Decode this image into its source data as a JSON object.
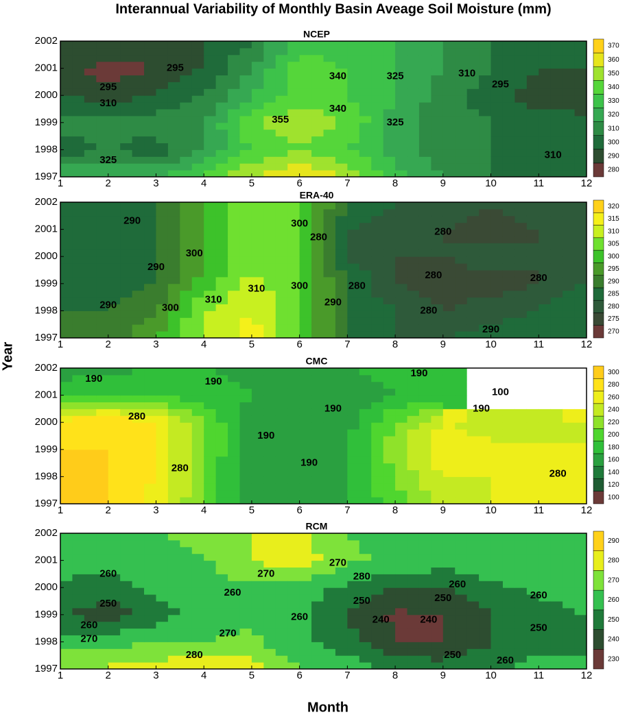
{
  "title": "Interannual Variability of Monthly Basin Aveage Soil Moisture (mm)",
  "x_label": "Month",
  "y_label": "Year",
  "chart_data": [
    {
      "type": "contour",
      "title": "NCEP",
      "x": [
        1,
        2,
        3,
        4,
        5,
        6,
        7,
        8,
        9,
        10,
        11,
        12
      ],
      "y": [
        1997,
        1998,
        1999,
        2000,
        2001,
        2002
      ],
      "z": [
        [
          330,
          330,
          330,
          340,
          360,
          370,
          360,
          335,
          320,
          310,
          305,
          305
        ],
        [
          305,
          310,
          305,
          320,
          340,
          350,
          340,
          325,
          315,
          310,
          305,
          305
        ],
        [
          315,
          315,
          315,
          320,
          350,
          358,
          350,
          325,
          315,
          310,
          305,
          305
        ],
        [
          300,
          295,
          300,
          310,
          330,
          345,
          340,
          330,
          315,
          305,
          295,
          290
        ],
        [
          295,
          285,
          290,
          300,
          320,
          345,
          340,
          330,
          320,
          310,
          300,
          300
        ],
        [
          300,
          300,
          300,
          300,
          310,
          335,
          335,
          330,
          320,
          310,
          305,
          305
        ]
      ],
      "xlim": [
        1,
        12
      ],
      "ylim": [
        1997,
        2002
      ],
      "xticks": [
        1,
        2,
        3,
        4,
        5,
        6,
        7,
        8,
        9,
        10,
        11,
        12
      ],
      "yticks": [
        1997,
        1998,
        1999,
        2000,
        2001,
        2002
      ],
      "levels": [
        280,
        290,
        300,
        310,
        320,
        330,
        340,
        350,
        360,
        370
      ],
      "colors": [
        "#6b3a38",
        "#2d4d30",
        "#1f6b3a",
        "#2e8b45",
        "#36a852",
        "#3dc24a",
        "#55d63a",
        "#9fe22e",
        "#e6e51c",
        "#ffd11a"
      ],
      "contour_labels": [
        {
          "x": 2,
          "y": 2000.3,
          "value": 295
        },
        {
          "x": 2,
          "y": 1999.7,
          "value": 310
        },
        {
          "x": 2,
          "y": 1997.6,
          "value": 325
        },
        {
          "x": 3.4,
          "y": 2001,
          "value": 295
        },
        {
          "x": 5.6,
          "y": 1999.1,
          "value": 355
        },
        {
          "x": 6.8,
          "y": 1999.5,
          "value": 340
        },
        {
          "x": 6.8,
          "y": 2000.7,
          "value": 340
        },
        {
          "x": 8,
          "y": 1999,
          "value": 325
        },
        {
          "x": 8,
          "y": 2000.7,
          "value": 325
        },
        {
          "x": 10.2,
          "y": 2000.4,
          "value": 295
        },
        {
          "x": 9.5,
          "y": 2000.8,
          "value": 310
        },
        {
          "x": 11.3,
          "y": 1997.8,
          "value": 310
        }
      ]
    },
    {
      "type": "contour",
      "title": "ERA-40",
      "x": [
        1,
        2,
        3,
        4,
        5,
        6,
        7,
        8,
        9,
        10,
        11,
        12
      ],
      "y": [
        1997,
        1998,
        1999,
        2000,
        2001,
        2002
      ],
      "z": [
        [
          290,
          290,
          300,
          310,
          318,
          305,
          290,
          285,
          285,
          288,
          290,
          290
        ],
        [
          290,
          290,
          295,
          310,
          315,
          305,
          290,
          285,
          280,
          282,
          285,
          290
        ],
        [
          288,
          285,
          290,
          302,
          312,
          305,
          290,
          280,
          278,
          278,
          280,
          285
        ],
        [
          285,
          290,
          290,
          300,
          308,
          305,
          285,
          280,
          280,
          282,
          280,
          285
        ],
        [
          285,
          285,
          290,
          300,
          310,
          305,
          285,
          280,
          280,
          278,
          280,
          285
        ],
        [
          285,
          285,
          290,
          300,
          310,
          305,
          290,
          285,
          285,
          280,
          285,
          285
        ]
      ],
      "xlim": [
        1,
        12
      ],
      "ylim": [
        1997,
        2002
      ],
      "xticks": [
        1,
        2,
        3,
        4,
        5,
        6,
        7,
        8,
        9,
        10,
        11,
        12
      ],
      "yticks": [
        1997,
        1998,
        1999,
        2000,
        2001,
        2002
      ],
      "levels": [
        270,
        275,
        280,
        285,
        290,
        295,
        300,
        305,
        310,
        315,
        320
      ],
      "colors": [
        "#6b3a38",
        "#3a4a35",
        "#2e5a3a",
        "#1f6b3a",
        "#3a7d2e",
        "#4a9a2a",
        "#3dc22a",
        "#6fe030",
        "#c8f020",
        "#f5f01a",
        "#ffd11a"
      ],
      "contour_labels": [
        {
          "x": 2,
          "y": 1998.2,
          "value": 290
        },
        {
          "x": 2.5,
          "y": 2001.3,
          "value": 290
        },
        {
          "x": 3,
          "y": 1999.6,
          "value": 290
        },
        {
          "x": 3.8,
          "y": 2000.1,
          "value": 300
        },
        {
          "x": 3.3,
          "y": 1998.1,
          "value": 300
        },
        {
          "x": 4.2,
          "y": 1998.4,
          "value": 310
        },
        {
          "x": 5.1,
          "y": 1998.8,
          "value": 310
        },
        {
          "x": 6,
          "y": 2001.2,
          "value": 300
        },
        {
          "x": 6,
          "y": 1998.9,
          "value": 300
        },
        {
          "x": 6.4,
          "y": 2000.7,
          "value": 280
        },
        {
          "x": 6.7,
          "y": 1998.3,
          "value": 290
        },
        {
          "x": 7.2,
          "y": 1998.9,
          "value": 280
        },
        {
          "x": 9,
          "y": 2000.9,
          "value": 280
        },
        {
          "x": 8.8,
          "y": 1999.3,
          "value": 280
        },
        {
          "x": 11,
          "y": 1999.2,
          "value": 280
        },
        {
          "x": 8.7,
          "y": 1998,
          "value": 280
        },
        {
          "x": 10,
          "y": 1997.3,
          "value": 290
        }
      ]
    },
    {
      "type": "contour",
      "title": "CMC",
      "x": [
        1,
        2,
        3,
        4,
        5,
        6,
        7,
        8,
        9,
        10,
        11,
        12
      ],
      "y": [
        1997,
        1998,
        1999,
        2000,
        2001,
        2002
      ],
      "z": [
        [
          300,
          300,
          270,
          220,
          160,
          170,
          180,
          210,
          250,
          260,
          270,
          280
        ],
        [
          300,
          300,
          280,
          220,
          160,
          170,
          180,
          220,
          260,
          260,
          270,
          270
        ],
        [
          300,
          300,
          280,
          220,
          170,
          170,
          180,
          230,
          280,
          270,
          270,
          260
        ],
        [
          290,
          300,
          280,
          220,
          170,
          160,
          170,
          220,
          260,
          240,
          240,
          260
        ],
        [
          190,
          200,
          200,
          190,
          180,
          170,
          170,
          180,
          190,
          null,
          null,
          null
        ],
        [
          170,
          175,
          180,
          180,
          170,
          180,
          180,
          185,
          190,
          null,
          null,
          null
        ]
      ],
      "xlim": [
        1,
        12
      ],
      "ylim": [
        1997,
        2002
      ],
      "xticks": [
        1,
        2,
        3,
        4,
        5,
        6,
        7,
        8,
        9,
        10,
        11,
        12
      ],
      "yticks": [
        1997,
        1998,
        1999,
        2000,
        2001,
        2002
      ],
      "levels": [
        100,
        120,
        140,
        160,
        180,
        200,
        220,
        240,
        260,
        280,
        300
      ],
      "colors": [
        "#6b3a38",
        "#1f5c33",
        "#1f7a3a",
        "#2aa040",
        "#30bf3a",
        "#4fd62f",
        "#8fe22a",
        "#c4ea22",
        "#eeee1a",
        "#ffe21a",
        "#ffcc1a"
      ],
      "contour_labels": [
        {
          "x": 1.7,
          "y": 2001.6,
          "value": 190
        },
        {
          "x": 4.2,
          "y": 2001.5,
          "value": 190
        },
        {
          "x": 2.6,
          "y": 2000.2,
          "value": 280
        },
        {
          "x": 3.5,
          "y": 1998.3,
          "value": 280
        },
        {
          "x": 5.3,
          "y": 1999.5,
          "value": 190
        },
        {
          "x": 6.7,
          "y": 2000.5,
          "value": 190
        },
        {
          "x": 6.2,
          "y": 1998.5,
          "value": 190
        },
        {
          "x": 8.5,
          "y": 2001.8,
          "value": 190
        },
        {
          "x": 9.8,
          "y": 2000.5,
          "value": 190
        },
        {
          "x": 10.2,
          "y": 2001.1,
          "value": 100
        },
        {
          "x": 11.4,
          "y": 1998.1,
          "value": 280
        }
      ]
    },
    {
      "type": "contour",
      "title": "RCM",
      "x": [
        1,
        2,
        3,
        4,
        5,
        6,
        7,
        8,
        9,
        10,
        11,
        12
      ],
      "y": [
        1997,
        1998,
        1999,
        2000,
        2001,
        2002
      ],
      "z": [
        [
          280,
          282,
          285,
          290,
          285,
          270,
          265,
          260,
          255,
          258,
          265,
          268
        ],
        [
          265,
          265,
          270,
          270,
          272,
          262,
          255,
          240,
          240,
          250,
          255,
          255
        ],
        [
          250,
          245,
          255,
          265,
          268,
          262,
          248,
          238,
          240,
          250,
          258,
          260
        ],
        [
          258,
          255,
          262,
          268,
          268,
          265,
          258,
          250,
          250,
          258,
          262,
          262
        ],
        [
          265,
          265,
          265,
          268,
          280,
          285,
          272,
          268,
          265,
          265,
          265,
          265
        ],
        [
          270,
          270,
          270,
          275,
          280,
          285,
          270,
          265,
          265,
          265,
          265,
          265
        ]
      ],
      "xlim": [
        1,
        12
      ],
      "ylim": [
        1997,
        2002
      ],
      "xticks": [
        1,
        2,
        3,
        4,
        5,
        6,
        7,
        8,
        9,
        10,
        11,
        12
      ],
      "yticks": [
        1997,
        1998,
        1999,
        2000,
        2001,
        2002
      ],
      "levels": [
        230,
        240,
        250,
        260,
        270,
        280,
        290
      ],
      "colors": [
        "#6b3a38",
        "#2d4d30",
        "#1f7a3a",
        "#35c050",
        "#7ee23a",
        "#e8ee1c",
        "#ffd11a"
      ],
      "contour_labels": [
        {
          "x": 2,
          "y": 2000.5,
          "value": 260
        },
        {
          "x": 2,
          "y": 1999.4,
          "value": 250
        },
        {
          "x": 1.6,
          "y": 1998.6,
          "value": 260
        },
        {
          "x": 1.6,
          "y": 1998.1,
          "value": 270
        },
        {
          "x": 3.8,
          "y": 1997.5,
          "value": 280
        },
        {
          "x": 4.5,
          "y": 1998.3,
          "value": 270
        },
        {
          "x": 4.6,
          "y": 1999.8,
          "value": 260
        },
        {
          "x": 5.3,
          "y": 2000.5,
          "value": 270
        },
        {
          "x": 6.8,
          "y": 2000.9,
          "value": 270
        },
        {
          "x": 6,
          "y": 1998.9,
          "value": 260
        },
        {
          "x": 7.3,
          "y": 2000.4,
          "value": 280
        },
        {
          "x": 7.3,
          "y": 1999.5,
          "value": 250
        },
        {
          "x": 7.7,
          "y": 1998.8,
          "value": 240
        },
        {
          "x": 8.7,
          "y": 1998.8,
          "value": 240
        },
        {
          "x": 9,
          "y": 1999.6,
          "value": 250
        },
        {
          "x": 9.3,
          "y": 2000.1,
          "value": 260
        },
        {
          "x": 11,
          "y": 1999.7,
          "value": 260
        },
        {
          "x": 11,
          "y": 1998.5,
          "value": 250
        },
        {
          "x": 9.2,
          "y": 1997.5,
          "value": 250
        },
        {
          "x": 10.3,
          "y": 1997.3,
          "value": 260
        }
      ]
    }
  ]
}
